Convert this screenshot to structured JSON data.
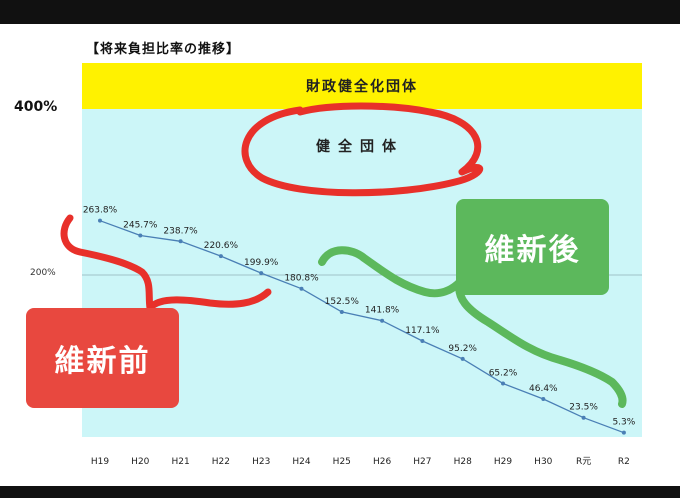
{
  "title": "【将来負担比率の推移】",
  "band_label": "財政健全化団体",
  "category_label": "健全団体",
  "annotations": {
    "before": "維新前",
    "after": "維新後"
  },
  "colors": {
    "band": "#fff200",
    "plot_background": "#ccf6f8",
    "line": "#4a7fb5",
    "before_box": "#e8483f",
    "after_box": "#5cb85c",
    "after_scribble": "#5cb85c",
    "before_scribble": "#e8483f"
  },
  "chart_data": {
    "type": "line",
    "categories": [
      "H19",
      "H20",
      "H21",
      "H22",
      "H23",
      "H24",
      "H25",
      "H26",
      "H27",
      "H28",
      "H29",
      "H30",
      "R元",
      "R2"
    ],
    "values": [
      263.8,
      245.7,
      238.7,
      220.6,
      199.9,
      180.8,
      152.5,
      141.8,
      117.1,
      95.2,
      65.2,
      46.4,
      23.5,
      5.3
    ],
    "data_labels": [
      "263.8%",
      "245.7%",
      "238.7%",
      "220.6%",
      "199.9%",
      "180.8%",
      "152.5%",
      "141.8%",
      "117.1%",
      "95.2%",
      "65.2%",
      "46.4%",
      "23.5%",
      "5.3%"
    ],
    "y_ticks": [
      "400%",
      "200%"
    ],
    "ylim": [
      0,
      400
    ],
    "grid": false
  }
}
